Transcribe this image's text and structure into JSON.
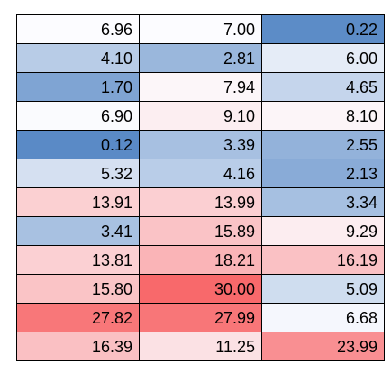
{
  "chart_data": {
    "type": "heatmap",
    "title": "",
    "colors": {
      "low": "#5a8ac6",
      "mid": "#fcfcff",
      "high": "#f8696b"
    },
    "rows": [
      [
        6.96,
        7.0,
        0.22
      ],
      [
        4.1,
        2.81,
        6.0
      ],
      [
        1.7,
        7.94,
        4.65
      ],
      [
        6.9,
        9.1,
        8.1
      ],
      [
        0.12,
        3.39,
        2.55
      ],
      [
        5.32,
        4.16,
        2.13
      ],
      [
        13.91,
        13.99,
        3.34
      ],
      [
        3.41,
        15.89,
        9.29
      ],
      [
        13.81,
        18.21,
        16.19
      ],
      [
        15.8,
        30.0,
        5.09
      ],
      [
        27.82,
        27.99,
        6.68
      ],
      [
        16.39,
        11.25,
        23.99
      ]
    ],
    "labels": [
      [
        "6.96",
        "7.00",
        "0.22"
      ],
      [
        "4.10",
        "2.81",
        "6.00"
      ],
      [
        "1.70",
        "7.94",
        "4.65"
      ],
      [
        "6.90",
        "9.10",
        "8.10"
      ],
      [
        "0.12",
        "3.39",
        "2.55"
      ],
      [
        "5.32",
        "4.16",
        "2.13"
      ],
      [
        "13.91",
        "13.99",
        "3.34"
      ],
      [
        "3.41",
        "15.89",
        "9.29"
      ],
      [
        "13.81",
        "18.21",
        "16.19"
      ],
      [
        "15.80",
        "30.00",
        "5.09"
      ],
      [
        "27.82",
        "27.99",
        "6.68"
      ],
      [
        "16.39",
        "11.25",
        "23.99"
      ]
    ]
  }
}
